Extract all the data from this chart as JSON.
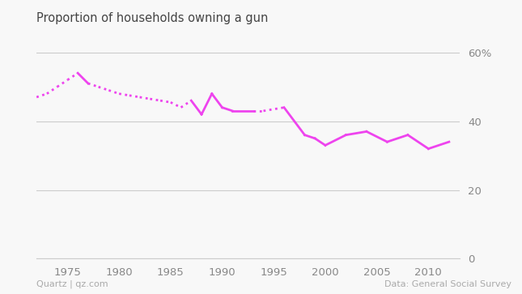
{
  "title": "Proportion of households owning a gun",
  "source_left": "Quartz | qz.com",
  "source_right": "Data: General Social Survey",
  "line_color": "#ee44ee",
  "background_color": "#f8f8f8",
  "yticks": [
    0,
    20,
    40,
    60
  ],
  "ylim": [
    0,
    65
  ],
  "xlim": [
    1972,
    2013
  ],
  "xticks": [
    1975,
    1980,
    1985,
    1990,
    1995,
    2000,
    2005,
    2010
  ],
  "full_data": [
    [
      1972,
      47,
      "solid"
    ],
    [
      1973,
      48,
      "dotted"
    ],
    [
      1974,
      50,
      "dotted"
    ],
    [
      1975,
      52,
      "dotted"
    ],
    [
      1976,
      54,
      "solid"
    ],
    [
      1977,
      51,
      "solid"
    ],
    [
      1978,
      50,
      "dotted"
    ],
    [
      1979,
      49,
      "dotted"
    ],
    [
      1980,
      48,
      "dotted"
    ],
    [
      1981,
      47.5,
      "dotted"
    ],
    [
      1982,
      47,
      "dotted"
    ],
    [
      1983,
      46.5,
      "dotted"
    ],
    [
      1984,
      46,
      "dotted"
    ],
    [
      1985,
      45.5,
      "solid"
    ],
    [
      1986,
      44,
      "dotted"
    ],
    [
      1987,
      46,
      "solid"
    ],
    [
      1988,
      42,
      "solid"
    ],
    [
      1989,
      48,
      "solid"
    ],
    [
      1990,
      44,
      "solid"
    ],
    [
      1991,
      43,
      "solid"
    ],
    [
      1993,
      43,
      "solid"
    ],
    [
      1994,
      43,
      "dotted"
    ],
    [
      1996,
      44,
      "solid"
    ],
    [
      1998,
      36,
      "solid"
    ],
    [
      1999,
      35,
      "solid"
    ],
    [
      2000,
      33,
      "solid"
    ],
    [
      2002,
      36,
      "solid"
    ],
    [
      2004,
      37,
      "solid"
    ],
    [
      2006,
      34,
      "solid"
    ],
    [
      2008,
      36,
      "solid"
    ],
    [
      2010,
      32,
      "solid"
    ],
    [
      2012,
      34,
      "solid"
    ]
  ]
}
